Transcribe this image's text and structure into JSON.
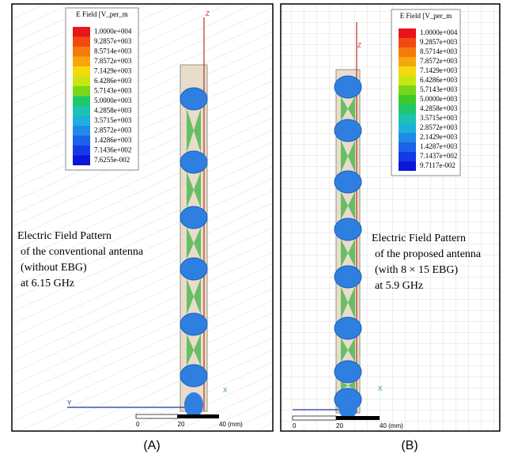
{
  "panels": [
    {
      "label": "(A)",
      "legend": {
        "title": "E Field [V_per_m",
        "labels": [
          "1.0000e+004",
          "9.2857e+003",
          "8.5714e+003",
          "7.8572e+003",
          "7.1429e+003",
          "6.4286e+003",
          "5.7143e+003",
          "5.0000e+003",
          "4.2858e+003",
          "3.5715e+003",
          "2.8572e+003",
          "1.4286e+003",
          "7.1436e+002",
          "7.6255e-002"
        ]
      },
      "caption": [
        "Electric Field Pattern",
        "of the conventional antenna",
        "(without EBG)",
        "at 6.15 GHz"
      ],
      "axes": {
        "z": "Z",
        "x": "X",
        "y": "Y"
      },
      "scale": [
        "0",
        "20",
        "40 (mm)"
      ]
    },
    {
      "label": "(B)",
      "legend": {
        "title": "E Field [V_per_m",
        "labels": [
          "1.0000e+004",
          "9.2857e+003",
          "8.5714e+003",
          "7.8572e+003",
          "7.1429e+003",
          "6.4286e+003",
          "5.7143e+003",
          "5.0000e+003",
          "4.2858e+003",
          "3.5715e+003",
          "2.8572e+003",
          "2.1429e+003",
          "1.4287e+003",
          "7.1437e+002",
          "9.7117e-002"
        ]
      },
      "caption": [
        "Electric Field Pattern",
        "of the proposed antenna",
        "(with 8 × 15 EBG)",
        "at 5.9 GHz"
      ],
      "axes": {
        "z": "Z",
        "x": "X"
      },
      "scale": [
        "0",
        "20",
        "40 (mm)"
      ]
    }
  ]
}
